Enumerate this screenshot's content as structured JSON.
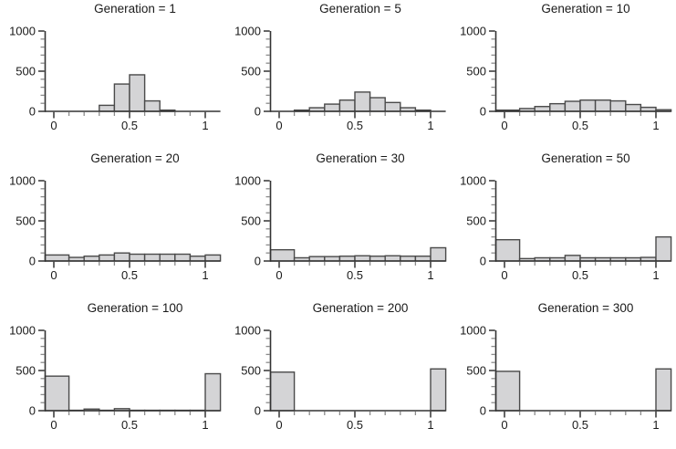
{
  "chart_data": {
    "type": "bar",
    "subtype": "histogram-grid",
    "title": "",
    "xlabel": "",
    "ylabel": "",
    "layout": {
      "rows": 3,
      "cols": 3,
      "grid": "off",
      "legend": "none",
      "x_axis_range": [
        0,
        1.1
      ],
      "y_axis_range": [
        0,
        1000
      ]
    },
    "bin_edges": [
      0,
      0.1,
      0.2,
      0.3,
      0.4,
      0.5,
      0.6,
      0.7,
      0.8,
      0.9,
      1.0,
      1.1
    ],
    "x_ticks": [
      {
        "value": 0,
        "label": "0"
      },
      {
        "value": 0.5,
        "label": "0.5"
      },
      {
        "value": 1,
        "label": "1"
      }
    ],
    "x_minor_ticks": [
      0.1,
      0.2,
      0.3,
      0.4,
      0.6,
      0.7,
      0.8,
      0.9
    ],
    "y_ticks": [
      {
        "value": 0,
        "label": "0"
      },
      {
        "value": 500,
        "label": "500"
      },
      {
        "value": 1000,
        "label": "1000"
      }
    ],
    "y_minor_ticks": [
      100,
      200,
      300,
      400,
      600,
      700,
      800,
      900
    ],
    "panels": [
      {
        "title": "Generation = 1",
        "generation": 1,
        "counts": [
          0,
          0,
          0,
          75,
          340,
          455,
          130,
          15,
          0,
          0,
          0
        ]
      },
      {
        "title": "Generation = 5",
        "generation": 5,
        "counts": [
          0,
          15,
          45,
          90,
          140,
          240,
          170,
          110,
          45,
          15,
          0
        ]
      },
      {
        "title": "Generation = 10",
        "generation": 10,
        "counts": [
          15,
          35,
          60,
          95,
          125,
          140,
          140,
          130,
          85,
          50,
          20
        ]
      },
      {
        "title": "Generation = 20",
        "generation": 20,
        "counts": [
          75,
          45,
          60,
          75,
          100,
          85,
          85,
          85,
          85,
          60,
          75
        ]
      },
      {
        "title": "Generation = 30",
        "generation": 30,
        "counts": [
          140,
          40,
          55,
          55,
          60,
          65,
          60,
          65,
          60,
          60,
          165
        ]
      },
      {
        "title": "Generation = 50",
        "generation": 50,
        "counts": [
          265,
          30,
          40,
          40,
          70,
          40,
          40,
          40,
          40,
          45,
          300
        ]
      },
      {
        "title": "Generation = 100",
        "generation": 100,
        "counts": [
          430,
          5,
          20,
          5,
          25,
          5,
          5,
          5,
          5,
          5,
          460
        ]
      },
      {
        "title": "Generation = 200",
        "generation": 200,
        "counts": [
          480,
          0,
          0,
          0,
          0,
          0,
          0,
          0,
          0,
          0,
          520
        ]
      },
      {
        "title": "Generation = 300",
        "generation": 300,
        "counts": [
          490,
          0,
          0,
          0,
          0,
          0,
          0,
          0,
          0,
          0,
          520
        ]
      }
    ]
  },
  "colors": {
    "background": "#ffffff",
    "bar_fill": "#d4d4d6",
    "bar_stroke": "#4a4a4a",
    "axis": "#333333",
    "major_tick": "#333333",
    "minor_tick": "#8c8c8c",
    "text": "#1a1a1a"
  }
}
